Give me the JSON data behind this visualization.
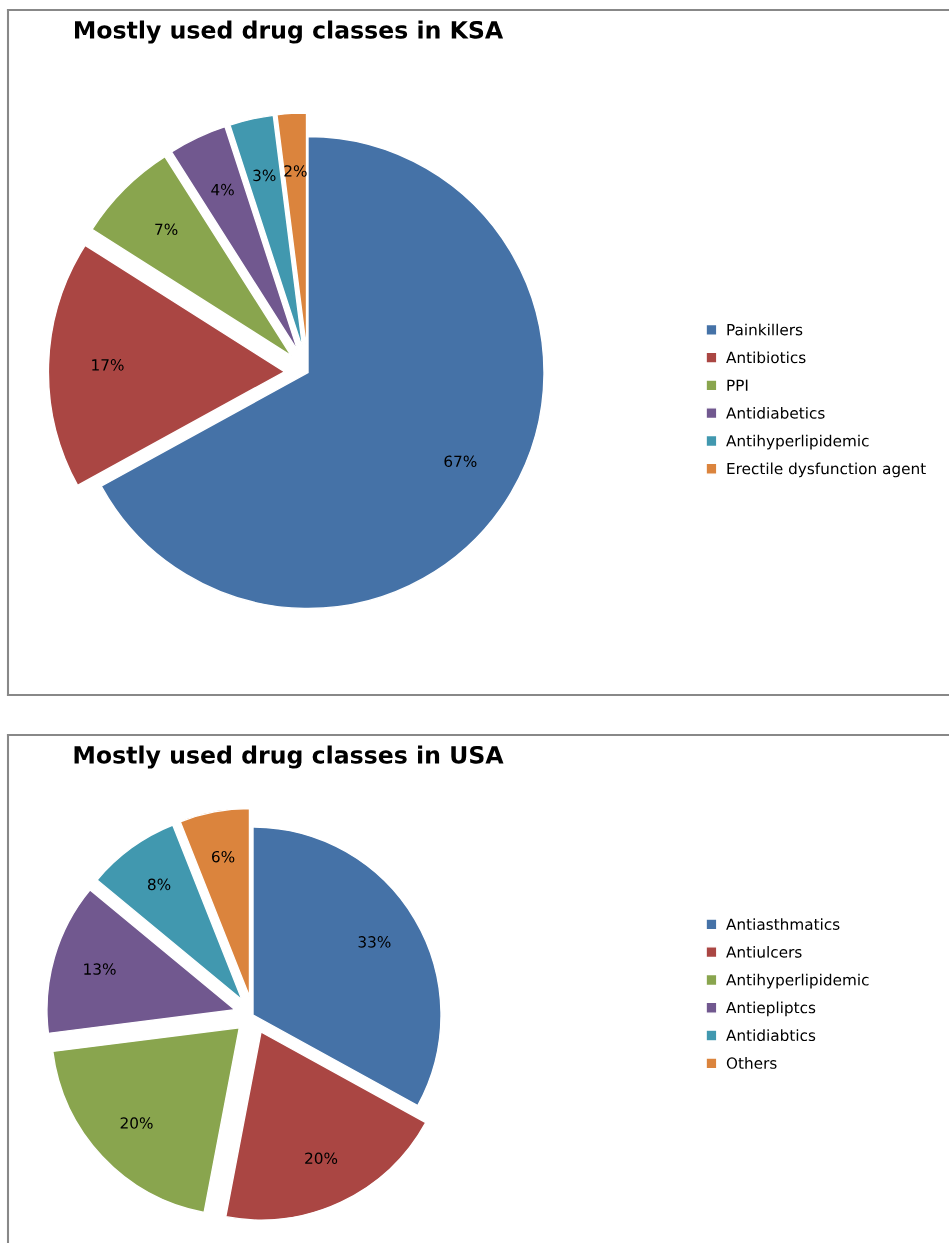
{
  "chart_data": [
    {
      "type": "pie",
      "title": "Mostly used drug classes in KSA",
      "categories": [
        "Painkillers",
        "Antibiotics",
        "PPI",
        "Antidiabetics",
        "Antihyperlipidemic",
        "Erectile dysfunction agent"
      ],
      "values": [
        67,
        17,
        7,
        4,
        3,
        2
      ],
      "colors": [
        "#4572a7",
        "#aa4643",
        "#89a54e",
        "#71588f",
        "#4198af",
        "#db843d"
      ],
      "value_labels": [
        "67%",
        "17%",
        "7%",
        "4%",
        "3%",
        "2%"
      ],
      "legend": "right"
    },
    {
      "type": "pie",
      "title": "Mostly used drug classes in USA",
      "categories": [
        "Antiasthmatics",
        "Antiulcers",
        "Antihyperlipidemic",
        "Antiepliptcs",
        "Antidiabtics",
        "Others"
      ],
      "values": [
        33,
        20,
        20,
        13,
        8,
        6
      ],
      "colors": [
        "#4572a7",
        "#aa4643",
        "#89a54e",
        "#71588f",
        "#4198af",
        "#db843d"
      ],
      "value_labels": [
        "33%",
        "20%",
        "20%",
        "13%",
        "8%",
        "6%"
      ],
      "legend": "right"
    }
  ]
}
